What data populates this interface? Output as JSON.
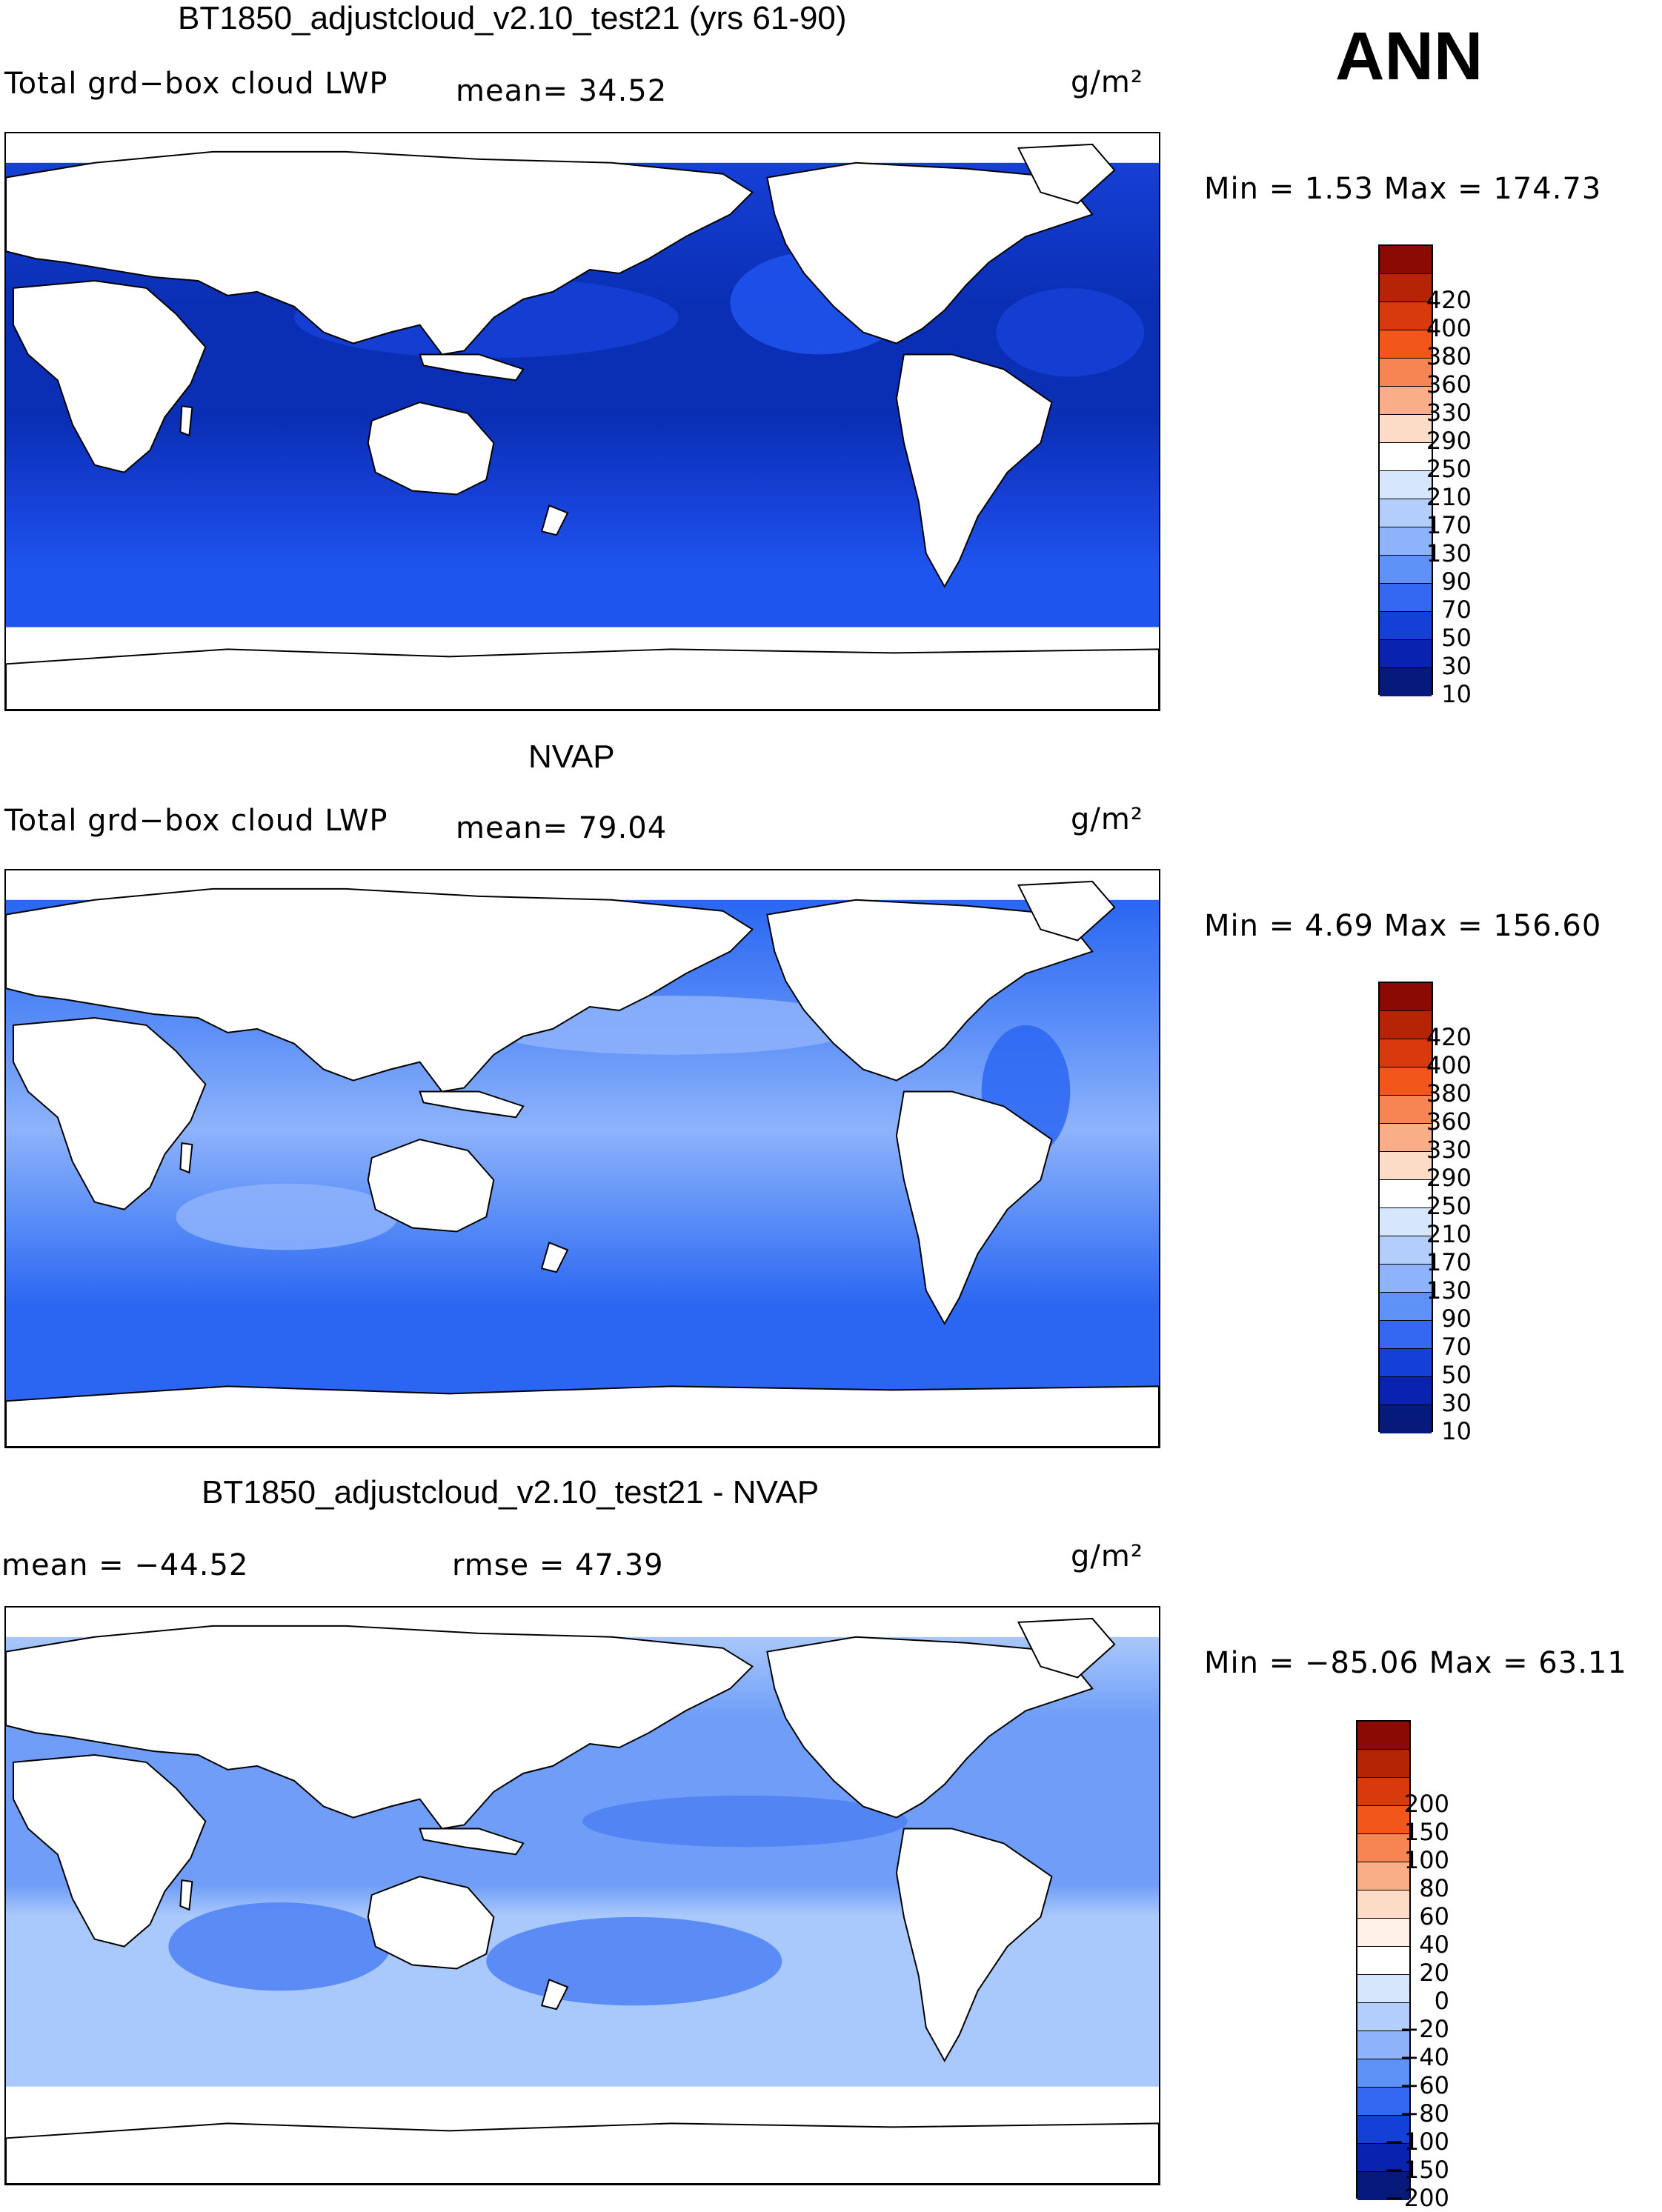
{
  "season": "ANN",
  "units": "g/m²",
  "panels": [
    {
      "title": "BT1850_adjustcloud_v2.10_test21 (yrs 61-90)",
      "variable": "Total grd−box cloud LWP",
      "stat1": "mean=  34.52",
      "stat2": "",
      "minmax": "Min =   1.53 Max = 174.73",
      "palette": "abs",
      "colorbar_labels": [
        "420",
        "400",
        "380",
        "360",
        "330",
        "290",
        "250",
        "210",
        "170",
        "130",
        "90",
        "70",
        "50",
        "30",
        "10"
      ],
      "ocean_base": "#0a2fb5",
      "ocean_mid": "#1640d6",
      "ocean_light": "#1e55ee"
    },
    {
      "title": "NVAP",
      "variable": "Total grd−box cloud LWP",
      "stat1": "mean=  79.04",
      "stat2": "",
      "minmax": "Min =   4.69 Max = 156.60",
      "palette": "abs",
      "colorbar_labels": [
        "420",
        "400",
        "380",
        "360",
        "330",
        "290",
        "250",
        "210",
        "170",
        "130",
        "90",
        "70",
        "50",
        "30",
        "10"
      ],
      "ocean_base": "#2a66f2",
      "ocean_mid": "#5b8ef7",
      "ocean_light": "#8eb3fb"
    },
    {
      "title": "BT1850_adjustcloud_v2.10_test21 - NVAP",
      "variable": "",
      "stat1": "mean = −44.52",
      "stat2": "rmse =  47.39",
      "minmax": "Min = −85.06 Max =  63.11",
      "palette": "diff",
      "colorbar_labels": [
        "200",
        "150",
        "100",
        "80",
        "60",
        "40",
        "20",
        "0",
        "−20",
        "−40",
        "−60",
        "−80",
        "−100",
        "−150",
        "−200"
      ],
      "ocean_base": "#a9c8fb",
      "ocean_mid": "#6f9df7",
      "ocean_light": "#4d80f3"
    }
  ],
  "palettes": {
    "abs": [
      "#8c0a04",
      "#b52505",
      "#d83a0e",
      "#f2561b",
      "#f78553",
      "#f9ae88",
      "#fcdcc6",
      "#ffffff",
      "#d6e6fc",
      "#b3cefb",
      "#8eb3fb",
      "#5f92f6",
      "#3468f0",
      "#1440d8",
      "#0a22b0",
      "#051a7a"
    ],
    "diff": [
      "#8c0a04",
      "#b52505",
      "#d83a0e",
      "#f2561b",
      "#f78553",
      "#f9ae88",
      "#fcdcc6",
      "#fff1e6",
      "#ffffff",
      "#d6e6fc",
      "#b3cefb",
      "#8eb3fb",
      "#5f92f6",
      "#3468f0",
      "#1440d8",
      "#0a22b0",
      "#051a7a"
    ]
  }
}
